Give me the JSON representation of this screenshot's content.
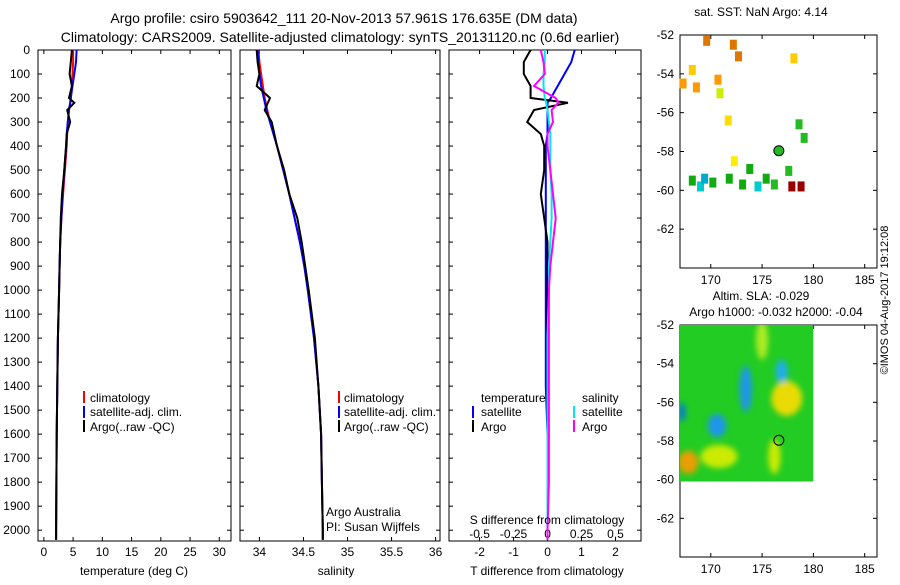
{
  "title_line1": "Argo profile: csiro 5903642_111 20-Nov-2013 57.961S 176.635E (DM data)",
  "title_line2": "Climatology: CARS2009. Satellite-adjusted climatology: synTS_20131120.nc (0.6d earlier)",
  "credit": "©IMOS 04-Aug-2017 19:12:08",
  "colors": {
    "climatology": "#ff0000",
    "satellite": "#0000ff",
    "argo": "#000000",
    "s_satellite": "#00e5ee",
    "s_argo": "#ff00ff"
  },
  "chart_data": [
    {
      "type": "line",
      "name": "temperature",
      "xlabel": "temperature (deg C)",
      "ylabel": "",
      "xlim": [
        -1,
        32
      ],
      "ylim": [
        2045,
        0
      ],
      "xticks": [
        "0",
        "5",
        "10",
        "15",
        "20",
        "25",
        "30"
      ],
      "yticks": [
        "0",
        "100",
        "200",
        "300",
        "400",
        "500",
        "600",
        "700",
        "800",
        "900",
        "1000",
        "1100",
        "1200",
        "1300",
        "1400",
        "1500",
        "1600",
        "1700",
        "1800",
        "1900",
        "2000"
      ],
      "legend": [
        "climatology",
        "satellite-adj. clim.",
        "Argo(..raw -QC)"
      ],
      "depth": [
        0,
        50,
        100,
        150,
        200,
        220,
        250,
        300,
        350,
        400,
        500,
        600,
        700,
        800,
        900,
        1000,
        1200,
        1400,
        1600,
        1800,
        2000,
        2040
      ],
      "series": [
        {
          "name": "climatology",
          "values": [
            5.0,
            5.0,
            4.9,
            4.8,
            4.6,
            4.5,
            4.3,
            4.1,
            4.0,
            3.9,
            3.6,
            3.3,
            3.0,
            2.8,
            2.7,
            2.6,
            2.4,
            2.3,
            2.2,
            2.15,
            2.1,
            2.1
          ]
        },
        {
          "name": "satellite-adj. clim.",
          "values": [
            5.6,
            5.5,
            5.2,
            4.9,
            4.6,
            4.5,
            4.3,
            4.1,
            3.9,
            3.8,
            3.5,
            3.2,
            3.0,
            2.8,
            2.7,
            2.6,
            2.4,
            2.3,
            2.2,
            2.15,
            2.1,
            2.1
          ]
        },
        {
          "name": "Argo(..raw -QC)",
          "values": [
            4.8,
            4.6,
            4.4,
            4.8,
            4.3,
            5.2,
            4.0,
            4.5,
            3.9,
            3.8,
            3.5,
            3.1,
            2.9,
            2.8,
            2.7,
            2.6,
            2.4,
            2.3,
            2.2,
            2.15,
            2.1,
            2.1
          ]
        }
      ]
    },
    {
      "type": "line",
      "name": "salinity",
      "xlabel": "salinity",
      "xlim": [
        33.78,
        36.05
      ],
      "ylim": [
        2045,
        0
      ],
      "xticks": [
        "34",
        "34.5",
        "35",
        "35.5",
        "36"
      ],
      "legend": [
        "climatology",
        "satellite-adj. clim.",
        "Argo(..raw -QC)"
      ],
      "annotation": [
        "Argo Australia",
        "PI: Susan Wijffels"
      ],
      "depth": [
        0,
        50,
        100,
        150,
        200,
        250,
        300,
        400,
        500,
        600,
        700,
        800,
        900,
        1000,
        1200,
        1400,
        1600,
        1800,
        2000,
        2040
      ],
      "series": [
        {
          "name": "climatology",
          "values": [
            33.99,
            34.0,
            34.02,
            34.04,
            34.06,
            34.09,
            34.12,
            34.2,
            34.27,
            34.34,
            34.4,
            34.46,
            34.51,
            34.55,
            34.62,
            34.67,
            34.7,
            34.71,
            34.72,
            34.72
          ]
        },
        {
          "name": "satellite-adj. clim.",
          "values": [
            33.98,
            33.99,
            34.0,
            34.02,
            34.05,
            34.08,
            34.12,
            34.2,
            34.27,
            34.34,
            34.4,
            34.46,
            34.51,
            34.55,
            34.62,
            34.67,
            34.7,
            34.71,
            34.72,
            34.72
          ]
        },
        {
          "name": "Argo(..raw -QC)",
          "values": [
            33.97,
            33.98,
            34.0,
            33.97,
            34.12,
            34.06,
            34.14,
            34.2,
            34.28,
            34.34,
            34.43,
            34.48,
            34.52,
            34.56,
            34.63,
            34.67,
            34.7,
            34.71,
            34.72,
            34.72
          ]
        }
      ]
    },
    {
      "type": "line",
      "name": "difference from climatology",
      "xlabel": "T difference from climatology",
      "x2label": "S difference from climatology",
      "xlim": [
        -2.9,
        2.75
      ],
      "x2lim": [
        -0.725,
        0.6875
      ],
      "ylim": [
        2045,
        0
      ],
      "xticks": [
        "-2",
        "-1",
        "0",
        "1",
        "2"
      ],
      "x2ticks": [
        "-0.5",
        "-0.25",
        "0",
        "0.25",
        "0.5"
      ],
      "legend_t": {
        "heading": "temperature",
        "items": [
          "satellite",
          "Argo"
        ]
      },
      "legend_s": {
        "heading": "salinity",
        "items": [
          "satellite",
          "Argo"
        ]
      },
      "depth": [
        0,
        50,
        100,
        150,
        200,
        220,
        250,
        300,
        350,
        400,
        500,
        600,
        700,
        800,
        900,
        1000,
        1200,
        1400,
        1600,
        1800,
        2000,
        2040
      ],
      "series": [
        {
          "name": "T satellite",
          "axis": "T",
          "values": [
            0.8,
            0.7,
            0.5,
            0.3,
            0.1,
            0.0,
            0.0,
            0.0,
            0.0,
            -0.05,
            -0.05,
            -0.05,
            -0.05,
            -0.05,
            -0.05,
            -0.05,
            -0.05,
            -0.05,
            0,
            0,
            0,
            0
          ]
        },
        {
          "name": "T Argo",
          "axis": "T",
          "values": [
            -0.5,
            -0.7,
            -0.7,
            -0.5,
            -0.5,
            0.6,
            -0.4,
            -0.6,
            -0.2,
            -0.1,
            -0.1,
            -0.2,
            -0.1,
            0,
            0,
            0,
            0,
            0,
            0,
            0,
            0,
            0
          ]
        },
        {
          "name": "S satellite",
          "axis": "S",
          "values": [
            -0.02,
            -0.02,
            -0.03,
            -0.03,
            -0.02,
            -0.01,
            0.0,
            0.01,
            0.02,
            0.02,
            0.02,
            0.03,
            0.03,
            0.02,
            0.01,
            0.01,
            0.0,
            0.0,
            0.0,
            0.0,
            0.0,
            0.0
          ]
        },
        {
          "name": "S Argo",
          "axis": "S",
          "values": [
            -0.05,
            -0.03,
            -0.02,
            -0.1,
            0.06,
            0.08,
            0.03,
            0.04,
            0.0,
            0.0,
            0.02,
            0.04,
            0.06,
            0.04,
            0.02,
            0.01,
            0.01,
            0.01,
            0.01,
            0.01,
            0.0,
            0.0
          ]
        }
      ]
    },
    {
      "type": "scatter",
      "name": "sst_map",
      "title": "sat. SST: NaN Argo: 4.14",
      "xlim": [
        167,
        186.2
      ],
      "ylim": [
        -64,
        -52
      ],
      "xticks": [
        "170",
        "175",
        "180",
        "185"
      ],
      "yticks": [
        "-52",
        "-54",
        "-56",
        "-58",
        "-60",
        "-62"
      ],
      "argo_position": [
        176.635,
        -57.961
      ],
      "points": [
        {
          "lon": 167.3,
          "lat": -54.5,
          "color": "#ff9900"
        },
        {
          "lon": 168.2,
          "lat": -53.8,
          "color": "#ffcc00"
        },
        {
          "lon": 169.6,
          "lat": -52.3,
          "color": "#dd7700"
        },
        {
          "lon": 170.7,
          "lat": -54.3,
          "color": "#ff9900"
        },
        {
          "lon": 170.9,
          "lat": -55.0,
          "color": "#ccee00"
        },
        {
          "lon": 168.6,
          "lat": -54.7,
          "color": "#ff9900"
        },
        {
          "lon": 172.7,
          "lat": -53.1,
          "color": "#dd7700"
        },
        {
          "lon": 172.2,
          "lat": -52.5,
          "color": "#dd7700"
        },
        {
          "lon": 178.1,
          "lat": -53.2,
          "color": "#ffcc00"
        },
        {
          "lon": 171.7,
          "lat": -56.4,
          "color": "#ffdd00"
        },
        {
          "lon": 172.3,
          "lat": -58.5,
          "color": "#ffee00"
        },
        {
          "lon": 178.6,
          "lat": -56.6,
          "color": "#22bb22"
        },
        {
          "lon": 179.1,
          "lat": -57.3,
          "color": "#22bb22"
        },
        {
          "lon": 168.2,
          "lat": -59.5,
          "color": "#11aa11"
        },
        {
          "lon": 169.0,
          "lat": -59.8,
          "color": "#00cccc"
        },
        {
          "lon": 170.2,
          "lat": -59.6,
          "color": "#11aa11"
        },
        {
          "lon": 171.8,
          "lat": -59.4,
          "color": "#11aa11"
        },
        {
          "lon": 173.1,
          "lat": -59.7,
          "color": "#11aa11"
        },
        {
          "lon": 174.6,
          "lat": -59.8,
          "color": "#00cccc"
        },
        {
          "lon": 175.4,
          "lat": -59.4,
          "color": "#11aa11"
        },
        {
          "lon": 176.2,
          "lat": -59.7,
          "color": "#22bb22"
        },
        {
          "lon": 177.6,
          "lat": -59.0,
          "color": "#22bb22"
        },
        {
          "lon": 177.9,
          "lat": -59.8,
          "color": "#990000"
        },
        {
          "lon": 178.8,
          "lat": -59.8,
          "color": "#990000"
        },
        {
          "lon": 173.8,
          "lat": -58.9,
          "color": "#11aa11"
        },
        {
          "lon": 169.4,
          "lat": -59.4,
          "color": "#00aacc"
        }
      ]
    },
    {
      "type": "heatmap",
      "name": "sla_map",
      "title_line1": "Altim. SLA: -0.029",
      "title_line2": "Argo h1000: -0.032 h2000: -0.04",
      "xlim": [
        167,
        186.2
      ],
      "ylim": [
        -64,
        -52
      ],
      "xticks": [
        "170",
        "175",
        "180",
        "185"
      ],
      "yticks": [
        "-52",
        "-54",
        "-56",
        "-58",
        "-60",
        "-62"
      ],
      "field_extent": {
        "lon": [
          167,
          180
        ],
        "lat": [
          -60.1,
          -52
        ]
      },
      "argo_position": [
        176.635,
        -57.961
      ],
      "features": [
        {
          "lon": 173.4,
          "lat": -55.3,
          "r": 0.6,
          "rl": 1.2,
          "color": "#1e90ff"
        },
        {
          "lon": 170.6,
          "lat": -57.2,
          "r": 0.9,
          "rl": 0.6,
          "color": "#1e90ff"
        },
        {
          "lon": 176.9,
          "lat": -54.4,
          "r": 0.6,
          "rl": 0.6,
          "color": "#1eaaff"
        },
        {
          "lon": 177.4,
          "lat": -55.8,
          "r": 1.5,
          "rl": 0.9,
          "color": "#ffdd00"
        },
        {
          "lon": 167.8,
          "lat": -59.1,
          "r": 1.0,
          "rl": 0.6,
          "color": "#ff9900"
        },
        {
          "lon": 170.8,
          "lat": -58.8,
          "r": 1.8,
          "rl": 0.6,
          "color": "#ddee00"
        },
        {
          "lon": 176.2,
          "lat": -58.8,
          "r": 0.6,
          "rl": 0.9,
          "color": "#ddee00"
        },
        {
          "lon": 175.0,
          "lat": -52.8,
          "r": 0.6,
          "rl": 1.0,
          "color": "#bbee22"
        },
        {
          "lon": 167.2,
          "lat": -56.5,
          "r": 0.3,
          "rl": 0.5,
          "color": "#0066ff"
        }
      ]
    }
  ]
}
